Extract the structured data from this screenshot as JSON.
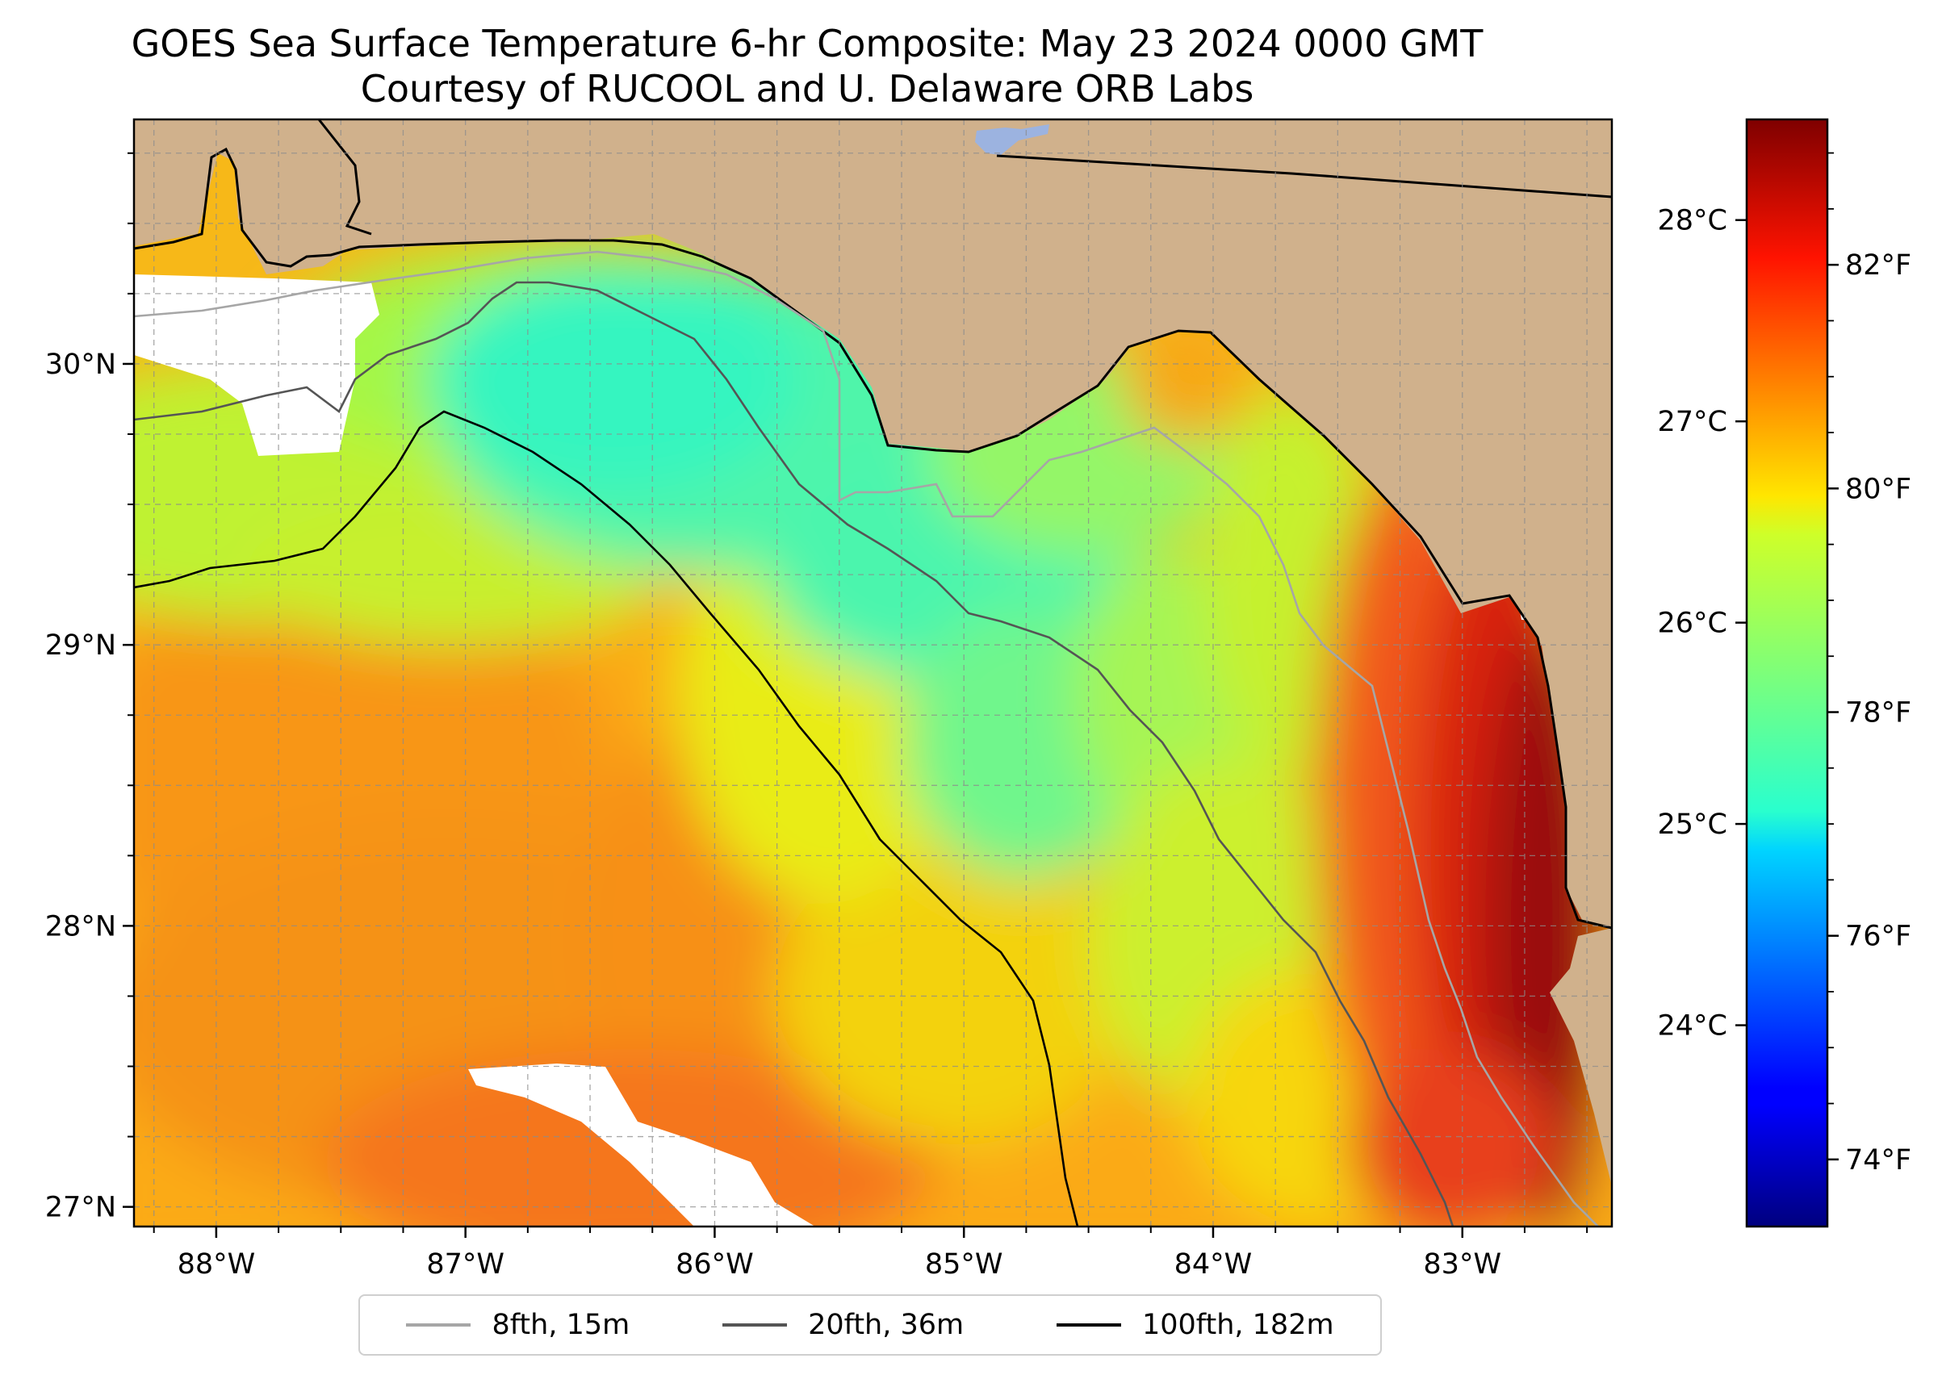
{
  "title": {
    "line1": "GOES Sea Surface Temperature 6-hr Composite: May 23 2024 0000 GMT",
    "line2": "Courtesy of RUCOOL and U. Delaware ORB Labs"
  },
  "map": {
    "lon_range": [
      -88.33,
      -82.4
    ],
    "lat_range": [
      26.93,
      30.87
    ],
    "lon_ticks": [
      {
        "value": -88,
        "label": "88°W"
      },
      {
        "value": -87,
        "label": "87°W"
      },
      {
        "value": -86,
        "label": "86°W"
      },
      {
        "value": -85,
        "label": "85°W"
      },
      {
        "value": -84,
        "label": "84°W"
      },
      {
        "value": -83,
        "label": "83°W"
      }
    ],
    "lat_ticks": [
      {
        "value": 27,
        "label": "27°N"
      },
      {
        "value": 28,
        "label": "28°N"
      },
      {
        "value": 29,
        "label": "29°N"
      },
      {
        "value": 30,
        "label": "30°N"
      }
    ],
    "land_color": "#d0b18c",
    "no_data_color": "#ffffff",
    "gridlines": "dashed, every 0.25°"
  },
  "colorbar": {
    "colormap": "jet",
    "range_f": [
      73.4,
      83.3
    ],
    "celsius_ticks": [
      {
        "value": 24,
        "label": "24°C"
      },
      {
        "value": 25,
        "label": "25°C"
      },
      {
        "value": 26,
        "label": "26°C"
      },
      {
        "value": 27,
        "label": "27°C"
      },
      {
        "value": 28,
        "label": "28°C"
      }
    ],
    "fahrenheit_ticks": [
      {
        "value": 74,
        "label": "74°F"
      },
      {
        "value": 76,
        "label": "76°F"
      },
      {
        "value": 78,
        "label": "78°F"
      },
      {
        "value": 80,
        "label": "80°F"
      },
      {
        "value": 82,
        "label": "82°F"
      }
    ]
  },
  "legend": {
    "placement": "bottom-center",
    "items": [
      {
        "label": "8fth, 15m",
        "color": "#a6a6a6"
      },
      {
        "label": "20fth, 36m",
        "color": "#555555"
      },
      {
        "label": "100fth, 182m",
        "color": "#000000"
      }
    ]
  }
}
